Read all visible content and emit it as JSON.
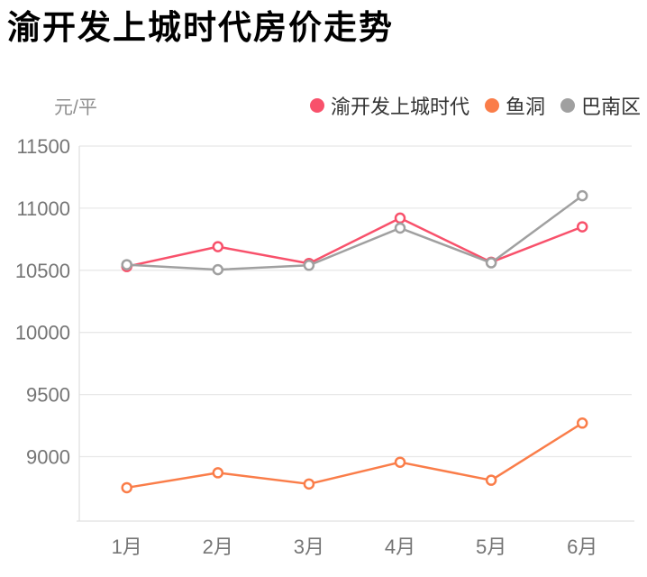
{
  "title": "渝开发上城时代房价走势",
  "unit_label": "元/平",
  "legend": [
    {
      "label": "渝开发上城时代",
      "color": "#f8516b"
    },
    {
      "label": "鱼洞",
      "color": "#fa7d49"
    },
    {
      "label": "巴南区",
      "color": "#a0a0a0"
    }
  ],
  "chart_data": {
    "type": "line",
    "title": "渝开发上城时代房价走势",
    "ylabel": "元/平",
    "categories": [
      "1月",
      "2月",
      "3月",
      "4月",
      "5月",
      "6月"
    ],
    "series": [
      {
        "name": "渝开发上城时代",
        "color": "#f8516b",
        "values": [
          10530,
          10690,
          10555,
          10920,
          10565,
          10850
        ]
      },
      {
        "name": "鱼洞",
        "color": "#fa7d49",
        "values": [
          8750,
          8870,
          8780,
          8955,
          8810,
          9270
        ]
      },
      {
        "name": "巴南区",
        "color": "#a0a0a0",
        "values": [
          10545,
          10505,
          10540,
          10840,
          10560,
          11100
        ]
      }
    ],
    "yticks": [
      11500,
      11000,
      10500,
      10000,
      9500,
      9000
    ],
    "ylim": [
      8480,
      11500
    ],
    "grid": true,
    "legend_position": "top-right",
    "marker": "open-circle",
    "colors": {
      "grid_line": "#e8e8e8",
      "axis_line": "#e0e0e0",
      "tick_text": "#757575",
      "legend_text": "#333333",
      "unit_text": "#8f8f8f",
      "marker_fill": "#ffffff"
    }
  }
}
